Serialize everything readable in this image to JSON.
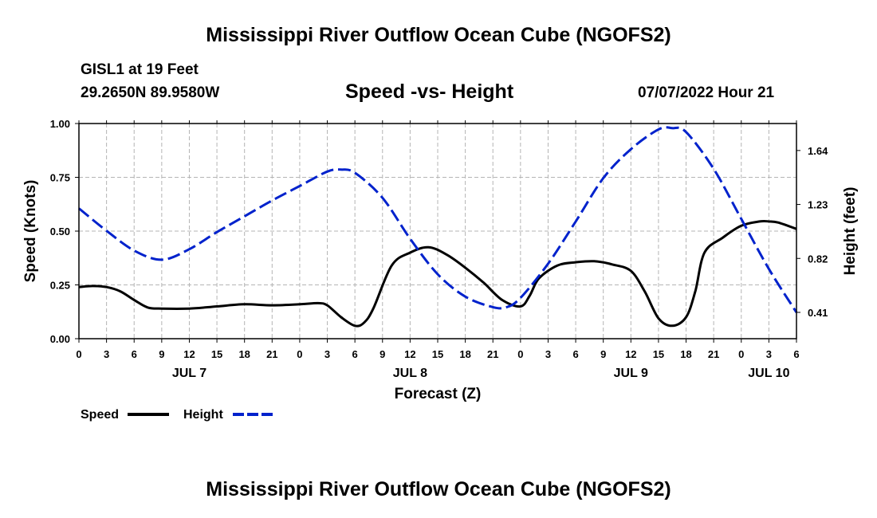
{
  "header": {
    "title": "Mississippi River Outflow Ocean Cube (NGOFS2)",
    "station": "GISL1 at 19 Feet",
    "coordinates": "29.2650N  89.9580W",
    "subtitle": "Speed -vs- Height",
    "forecast_time": "07/07/2022 Hour 21"
  },
  "footer": {
    "title": "Mississippi River Outflow Ocean Cube (NGOFS2)"
  },
  "chart_data": {
    "type": "line",
    "title": "Speed -vs- Height",
    "xlabel": "Forecast (Z)",
    "ylabel_left": "Speed (Knots)",
    "ylabel_right": "Height (feet)",
    "x_unit": "hours since JUL 7 00Z",
    "xlim": [
      0,
      78
    ],
    "ylim_left": [
      0,
      1
    ],
    "ylim_right": [
      0.21,
      1.845
    ],
    "x_ticks": [
      0,
      3,
      6,
      9,
      12,
      15,
      18,
      21,
      24,
      27,
      30,
      33,
      36,
      39,
      42,
      45,
      48,
      51,
      54,
      57,
      60,
      63,
      66,
      69,
      72,
      75,
      78
    ],
    "x_tick_labels": [
      "0",
      "3",
      "6",
      "9",
      "12",
      "15",
      "18",
      "21",
      "0",
      "3",
      "6",
      "9",
      "12",
      "15",
      "18",
      "21",
      "0",
      "3",
      "6",
      "9",
      "12",
      "15",
      "18",
      "21",
      "0",
      "3",
      "6"
    ],
    "day_labels": [
      {
        "x": 12,
        "label": "JUL 7"
      },
      {
        "x": 36,
        "label": "JUL 8"
      },
      {
        "x": 60,
        "label": "JUL 9"
      },
      {
        "x": 75,
        "label": "JUL 10"
      }
    ],
    "left_ticks": [
      0,
      0.25,
      0.5,
      0.75,
      1.0
    ],
    "left_tick_labels": [
      "0.00",
      "0.25",
      "0.50",
      "0.75",
      "1.00"
    ],
    "right_ticks": [
      0.41,
      0.82,
      1.23,
      1.64
    ],
    "right_tick_labels": [
      "0.41",
      "0.82",
      "1.23",
      "1.64"
    ],
    "grid": true,
    "legend_position": "bottom-left",
    "series": [
      {
        "name": "Speed",
        "axis": "left",
        "color": "#000000",
        "dash": "solid",
        "x": [
          0,
          1.5,
          3,
          4.5,
          6,
          7.5,
          9,
          12,
          15,
          18,
          21,
          24,
          26,
          27,
          28.5,
          30,
          31,
          32,
          34,
          36,
          38,
          40,
          42,
          44,
          46,
          48,
          49,
          50,
          52,
          54,
          56,
          58,
          60,
          61.5,
          63,
          64.5,
          66,
          67,
          68,
          70,
          72,
          74,
          75,
          76,
          78
        ],
        "y": [
          0.24,
          0.245,
          0.24,
          0.22,
          0.18,
          0.145,
          0.14,
          0.14,
          0.15,
          0.16,
          0.155,
          0.16,
          0.165,
          0.155,
          0.1,
          0.06,
          0.075,
          0.14,
          0.34,
          0.4,
          0.425,
          0.39,
          0.33,
          0.26,
          0.18,
          0.15,
          0.2,
          0.28,
          0.34,
          0.355,
          0.36,
          0.345,
          0.315,
          0.22,
          0.095,
          0.06,
          0.1,
          0.22,
          0.4,
          0.47,
          0.525,
          0.545,
          0.545,
          0.54,
          0.51
        ]
      },
      {
        "name": "Height",
        "axis": "right",
        "color": "#0022cc",
        "dash": "dashed",
        "x": [
          0,
          3,
          6,
          9,
          12,
          15,
          18,
          21,
          24,
          27,
          28.5,
          30,
          33,
          36,
          39,
          42,
          45,
          46.5,
          48,
          51,
          54,
          57,
          60,
          63,
          64.5,
          66,
          69,
          72,
          75,
          78
        ],
        "y": [
          1.2,
          1.03,
          0.88,
          0.81,
          0.89,
          1.02,
          1.14,
          1.26,
          1.37,
          1.48,
          1.495,
          1.47,
          1.28,
          0.97,
          0.7,
          0.53,
          0.45,
          0.45,
          0.52,
          0.78,
          1.1,
          1.43,
          1.65,
          1.8,
          1.81,
          1.78,
          1.5,
          1.12,
          0.74,
          0.41
        ]
      }
    ]
  }
}
